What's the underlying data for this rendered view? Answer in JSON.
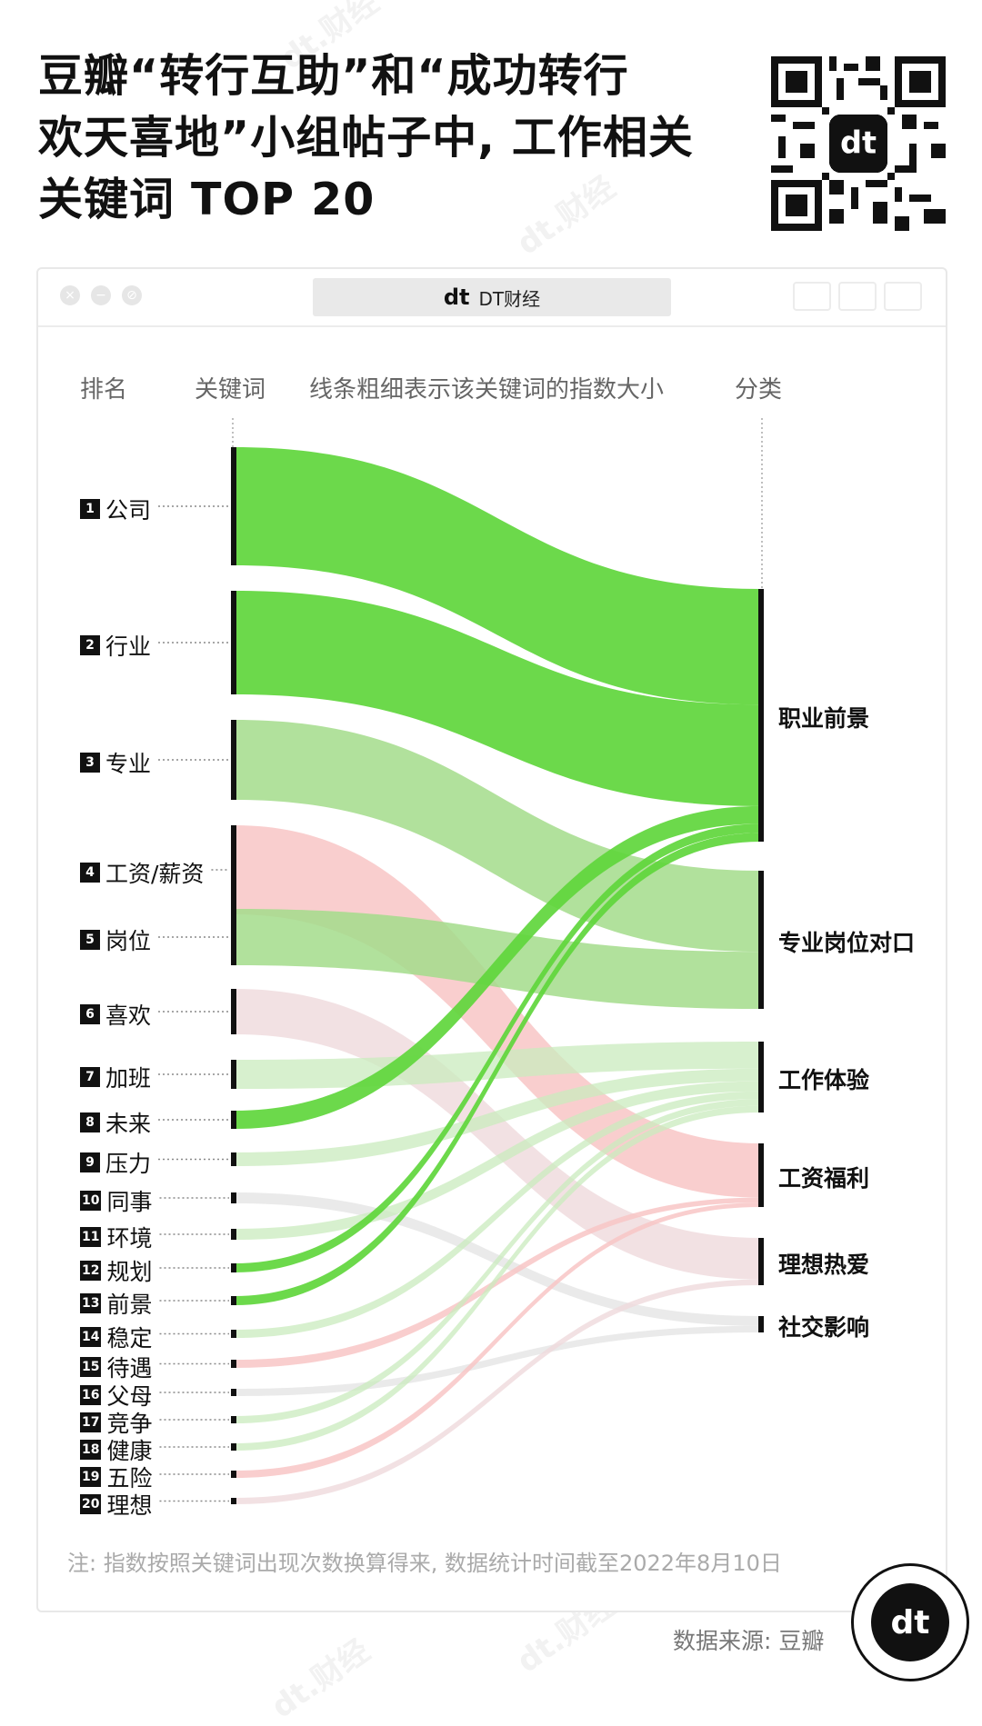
{
  "title_lines": [
    "豆瓣“转行互助”和“成功转行",
    "欢天喜地”小组帖子中, 工作相关",
    "关键词 TOP 20"
  ],
  "brand": {
    "mark": "dt",
    "name": "DT财经"
  },
  "headers": {
    "rank": "排名",
    "keyword": "关键词",
    "description": "线条粗细表示该关键词的指数大小",
    "category": "分类"
  },
  "watermark": "dt.财经",
  "categories": [
    "职业前景",
    "专业岗位对口",
    "工作体验",
    "工资福利",
    "理想热爱",
    "社交影响"
  ],
  "category_colors": {
    "职业前景": "#5fd63c",
    "专业岗位对口": "#a3dc8b",
    "工作体验": "#c9ebbd",
    "工资福利": "#f8c6c6",
    "理想热爱": "#efd9dc",
    "社交影响": "#e3e3e3"
  },
  "keywords": [
    {
      "rank": "1",
      "name": "公司",
      "category": "职业前景"
    },
    {
      "rank": "2",
      "name": "行业",
      "category": "职业前景"
    },
    {
      "rank": "3",
      "name": "专业",
      "category": "专业岗位对口"
    },
    {
      "rank": "4",
      "name": "工资/薪资",
      "category": "工资福利"
    },
    {
      "rank": "5",
      "name": "岗位",
      "category": "专业岗位对口"
    },
    {
      "rank": "6",
      "name": "喜欢",
      "category": "理想热爱"
    },
    {
      "rank": "7",
      "name": "加班",
      "category": "工作体验"
    },
    {
      "rank": "8",
      "name": "未来",
      "category": "职业前景"
    },
    {
      "rank": "9",
      "name": "压力",
      "category": "工作体验"
    },
    {
      "rank": "10",
      "name": "同事",
      "category": "社交影响"
    },
    {
      "rank": "11",
      "name": "环境",
      "category": "工作体验"
    },
    {
      "rank": "12",
      "name": "规划",
      "category": "职业前景"
    },
    {
      "rank": "13",
      "name": "前景",
      "category": "职业前景"
    },
    {
      "rank": "14",
      "name": "稳定",
      "category": "工作体验"
    },
    {
      "rank": "15",
      "name": "待遇",
      "category": "工资福利"
    },
    {
      "rank": "16",
      "name": "父母",
      "category": "社交影响"
    },
    {
      "rank": "17",
      "name": "竞争",
      "category": "工作体验"
    },
    {
      "rank": "18",
      "name": "健康",
      "category": "工作体验"
    },
    {
      "rank": "19",
      "name": "五险",
      "category": "工资福利"
    },
    {
      "rank": "20",
      "name": "理想",
      "category": "理想热爱"
    }
  ],
  "note": "注: 指数按照关键词出现次数换算得来, 数据统计时间截至2022年8月10日",
  "source": "数据来源: 豆瓣"
}
